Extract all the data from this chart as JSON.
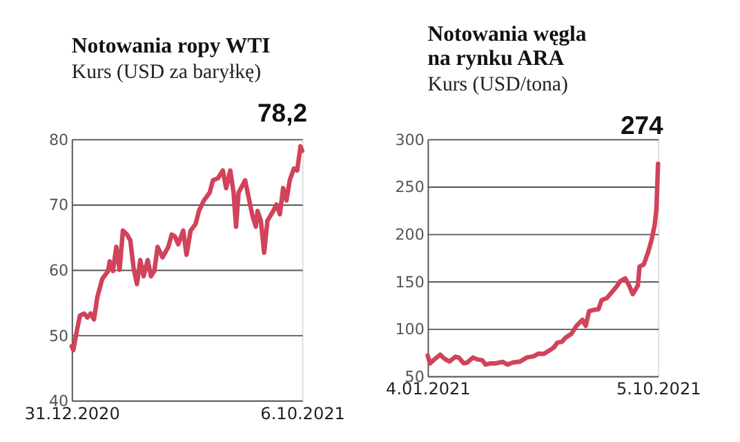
{
  "chart_data": [
    {
      "type": "line",
      "title": "Notowania ropy WTI",
      "subtitle": "Kurs (USD za baryłkę)",
      "x": [
        "2020-12-31",
        "2021-01-02",
        "2021-01-06",
        "2021-01-10",
        "2021-01-15",
        "2021-01-19",
        "2021-01-23",
        "2021-01-27",
        "2021-01-31",
        "2021-02-06",
        "2021-02-13",
        "2021-02-15",
        "2021-02-19",
        "2021-02-23",
        "2021-02-27",
        "2021-03-03",
        "2021-03-08",
        "2021-03-12",
        "2021-03-16",
        "2021-03-20",
        "2021-03-24",
        "2021-03-28",
        "2021-04-02",
        "2021-04-06",
        "2021-04-10",
        "2021-04-14",
        "2021-04-20",
        "2021-04-27",
        "2021-05-01",
        "2021-05-05",
        "2021-05-09",
        "2021-05-15",
        "2021-05-19",
        "2021-05-24",
        "2021-05-30",
        "2021-06-03",
        "2021-06-09",
        "2021-06-16",
        "2021-06-20",
        "2021-06-26",
        "2021-07-02",
        "2021-07-06",
        "2021-07-11",
        "2021-07-15",
        "2021-07-18",
        "2021-07-21",
        "2021-07-29",
        "2021-08-02",
        "2021-08-07",
        "2021-08-11",
        "2021-08-13",
        "2021-08-17",
        "2021-08-21",
        "2021-08-25",
        "2021-09-01",
        "2021-09-05",
        "2021-09-09",
        "2021-09-13",
        "2021-09-17",
        "2021-09-21",
        "2021-09-26",
        "2021-09-30",
        "2021-10-04",
        "2021-10-06"
      ],
      "series": [
        {
          "color": "#d0435a",
          "values": [
            48.3,
            47.7,
            50.5,
            53,
            53.3,
            52.7,
            53.3,
            52.4,
            55.8,
            58.6,
            59.8,
            61.3,
            59.8,
            63.5,
            60,
            66,
            65.4,
            64.5,
            60.2,
            57.8,
            61.5,
            59,
            61.5,
            59,
            59.8,
            63.5,
            61.9,
            63.5,
            65.4,
            65.1,
            63.9,
            66,
            62.3,
            66,
            67,
            69,
            70.6,
            71.8,
            73.7,
            74,
            75.2,
            72.5,
            75.2,
            71.8,
            66.6,
            71.8,
            73.7,
            71.2,
            68.2,
            66.6,
            69,
            67.5,
            62.6,
            67.5,
            69,
            70,
            68.5,
            72.5,
            70.6,
            73.7,
            75.5,
            75.2,
            78.9,
            78.2
          ]
        }
      ],
      "xlim": [
        "2020-12-31",
        "2021-10-06"
      ],
      "xticks": [
        {
          "value": "2020-12-31",
          "label": "31.12.2020"
        },
        {
          "value": "2021-10-06",
          "label": "6.10.2021"
        }
      ],
      "ylim": [
        40,
        80
      ],
      "yticks": [
        40,
        50,
        60,
        70,
        80
      ],
      "grid": "y",
      "annotations": [
        {
          "text": "78,2",
          "x": "2021-10-06",
          "y": 78.2
        }
      ]
    },
    {
      "type": "line",
      "title": "Notowania węgla\nna rynku ARA",
      "subtitle": "Kurs (USD/tona)",
      "x": [
        "2021-01-04",
        "2021-01-07",
        "2021-01-12",
        "2021-01-19",
        "2021-01-24",
        "2021-01-30",
        "2021-02-06",
        "2021-02-10",
        "2021-02-16",
        "2021-02-20",
        "2021-02-27",
        "2021-03-04",
        "2021-03-10",
        "2021-03-14",
        "2021-03-20",
        "2021-03-26",
        "2021-04-03",
        "2021-04-09",
        "2021-04-15",
        "2021-04-24",
        "2021-05-02",
        "2021-05-10",
        "2021-05-16",
        "2021-05-22",
        "2021-05-28",
        "2021-06-03",
        "2021-06-07",
        "2021-06-13",
        "2021-06-17",
        "2021-06-24",
        "2021-06-30",
        "2021-07-07",
        "2021-07-11",
        "2021-07-15",
        "2021-07-20",
        "2021-07-26",
        "2021-07-30",
        "2021-08-05",
        "2021-08-11",
        "2021-08-17",
        "2021-08-21",
        "2021-08-27",
        "2021-09-01",
        "2021-09-05",
        "2021-09-11",
        "2021-09-13",
        "2021-09-18",
        "2021-09-23",
        "2021-09-27",
        "2021-10-01",
        "2021-10-03",
        "2021-10-05"
      ],
      "series": [
        {
          "color": "#d0435a",
          "values": [
            71.7,
            63.4,
            67.6,
            72.6,
            68.4,
            65.4,
            70.4,
            69.6,
            63.4,
            64.2,
            69.6,
            67.6,
            66.7,
            62.1,
            63.4,
            63.4,
            65,
            62.1,
            64.2,
            65.4,
            69.6,
            70.9,
            73.8,
            73.4,
            76.7,
            80.1,
            85.1,
            86.4,
            90.5,
            94.7,
            103,
            109.3,
            103,
            118.5,
            119.7,
            120.5,
            130.2,
            132.2,
            138.5,
            144.8,
            150.2,
            153.1,
            144.8,
            136.4,
            145.6,
            165.6,
            167.7,
            180.2,
            192.7,
            209.4,
            226.1,
            274
          ]
        }
      ],
      "xlim": [
        "2021-01-04",
        "2021-10-05"
      ],
      "xticks": [
        {
          "value": "2021-01-04",
          "label": "4.01.2021"
        },
        {
          "value": "2021-10-05",
          "label": "5.10.2021"
        }
      ],
      "ylim": [
        50,
        300
      ],
      "yticks": [
        50,
        100,
        150,
        200,
        250,
        300
      ],
      "grid": "y",
      "annotations": [
        {
          "text": "274",
          "x": "2021-10-05",
          "y": 274
        }
      ]
    }
  ]
}
